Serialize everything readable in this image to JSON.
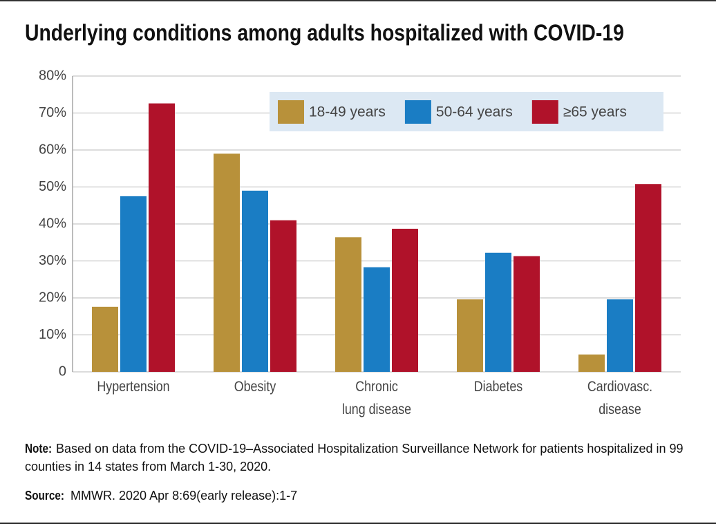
{
  "chart_data": {
    "type": "bar",
    "title": "Underlying conditions among adults hospitalized with COVID-19",
    "categories": [
      "Hypertension",
      "Obesity",
      "Chronic\nlung disease",
      "Diabetes",
      "Cardiovasc.\ndisease"
    ],
    "series": [
      {
        "name": "18-49 years",
        "color": "#b8913a",
        "values": [
          17.6,
          59,
          36.4,
          19.6,
          4.7
        ]
      },
      {
        "name": "50-64 years",
        "color": "#1a7dc4",
        "values": [
          47.5,
          49,
          28.3,
          32.2,
          19.6
        ]
      },
      {
        "name": "≥65 years",
        "color": "#b0122a",
        "values": [
          72.6,
          41,
          38.7,
          31.3,
          50.8
        ]
      }
    ],
    "ylim": [
      0,
      80
    ],
    "yticks": [
      0,
      {
        "value": 10,
        "label": "10%"
      },
      {
        "value": 20,
        "label": "20%"
      },
      {
        "value": 30,
        "label": "30%"
      },
      {
        "value": 40,
        "label": "40%"
      },
      {
        "value": 50,
        "label": "50%"
      },
      {
        "value": 60,
        "label": "60%"
      },
      {
        "value": 70,
        "label": "70%"
      },
      {
        "value": 80,
        "label": "80%"
      }
    ],
    "grid": true,
    "legend": "top-right",
    "note": {
      "label": "Note:",
      "text": "Based on data from the COVID-19–Associated Hospitalization Surveillance Network for patients hospitalized in 99 counties in 14 states from March 1-30, 2020."
    },
    "source": {
      "label": "Source:",
      "text": "MMWR. 2020 Apr 8:69(early release):1-7"
    }
  }
}
